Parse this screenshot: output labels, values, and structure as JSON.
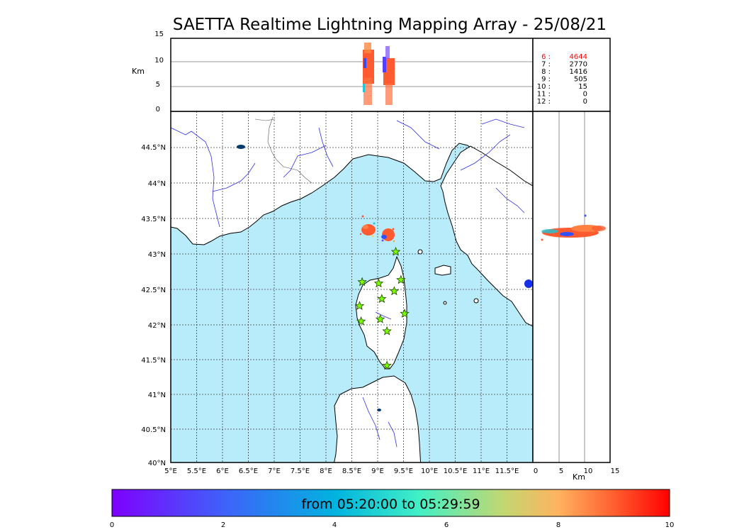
{
  "title": "SAETTA Realtime Lightning Mapping Array - 25/08/21",
  "altitude_panel": {
    "unit_label": "Km",
    "y_ticks": [
      "15",
      "10",
      "5",
      "0"
    ]
  },
  "map": {
    "lat_ticks": [
      "44.5°N",
      "44°N",
      "43.5°N",
      "43°N",
      "42.5°N",
      "42°N",
      "41.5°N",
      "41°N",
      "40.5°N",
      "40°N"
    ],
    "lon_ticks": [
      "5°E",
      "5.5°E",
      "6°E",
      "6.5°E",
      "7°E",
      "7.5°E",
      "8°E",
      "8.5°E",
      "9°E",
      "9.5°E",
      "10°E",
      "10.5°E",
      "11°E",
      "11.5°E"
    ],
    "colors": {
      "sea": "#b8ecfb",
      "land": "#ffffff",
      "rivers": "#3030e0",
      "stations": "#7cfc00"
    },
    "stations": [
      {
        "lon": 9.35,
        "lat": 43.0
      },
      {
        "lon": 8.7,
        "lat": 42.57
      },
      {
        "lon": 9.02,
        "lat": 42.55
      },
      {
        "lon": 9.45,
        "lat": 42.6
      },
      {
        "lon": 9.32,
        "lat": 42.44
      },
      {
        "lon": 9.08,
        "lat": 42.33
      },
      {
        "lon": 8.65,
        "lat": 42.23
      },
      {
        "lon": 9.52,
        "lat": 42.12
      },
      {
        "lon": 9.05,
        "lat": 42.04
      },
      {
        "lon": 8.68,
        "lat": 42.01
      },
      {
        "lon": 9.18,
        "lat": 41.87
      },
      {
        "lon": 9.18,
        "lat": 41.38
      }
    ]
  },
  "side_panel": {
    "x_ticks": [
      "0",
      "5",
      "10",
      "15"
    ],
    "xlabel": "Km"
  },
  "counts_table": [
    {
      "level": "6",
      "count": "4644",
      "color": "#ff0000"
    },
    {
      "level": "7",
      "count": "2770",
      "color": "#000000"
    },
    {
      "level": "8",
      "count": "1416",
      "color": "#000000"
    },
    {
      "level": "9",
      "count": "505",
      "color": "#000000"
    },
    {
      "level": "10",
      "count": "15",
      "color": "#000000"
    },
    {
      "level": "11",
      "count": "0",
      "color": "#000000"
    },
    {
      "level": "12",
      "count": "0",
      "color": "#000000"
    }
  ],
  "colorbar": {
    "label": "from 05:20:00 to 05:29:59",
    "ticks": [
      "0",
      "2",
      "4",
      "6",
      "8",
      "10"
    ]
  }
}
